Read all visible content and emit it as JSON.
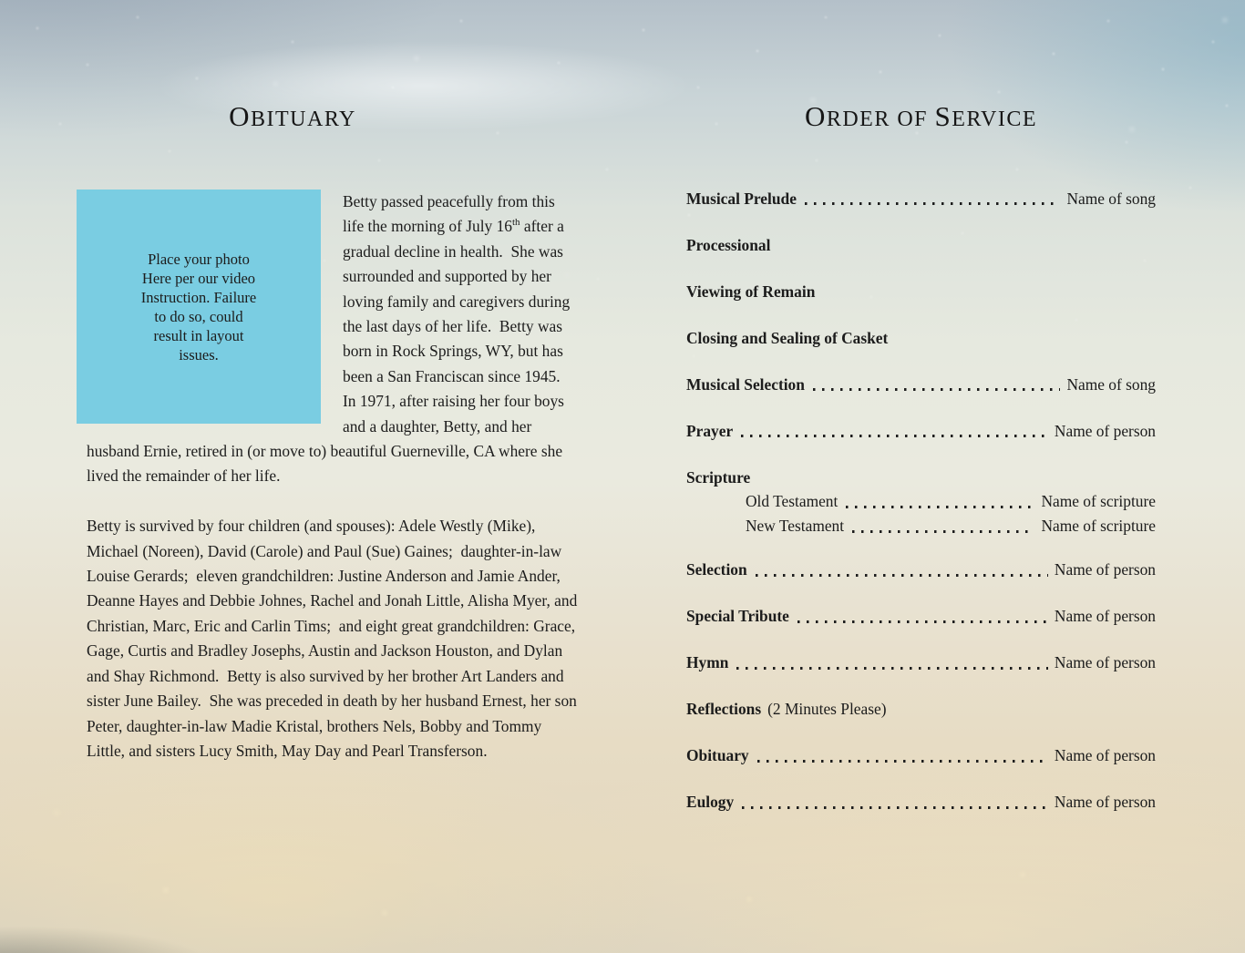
{
  "left_page": {
    "title_parts": [
      {
        "text": "O"
      },
      {
        "text": "bituary"
      }
    ],
    "photo_placeholder": {
      "bg_color": "#7acde2",
      "lines": [
        "Place your photo",
        "Here per our video",
        "Instruction. Failure",
        "to do so, could",
        "result in layout",
        "issues."
      ]
    },
    "paragraph1": {
      "before_sup": "Betty passed peacefully from this life the morning of July 16",
      "sup": "th",
      "after_sup": " after a gradual decline in health.  She was surrounded and supported by her loving family and caregivers during the last days of her life.  Betty was born in Rock Springs, WY, but has been a San Franciscan since 1945.  In 1971, after raising her four boys and a daughter, Betty, and her husband Ernie, retired in (or move to) beautiful Guerneville, CA where she lived the remainder of her life."
    },
    "paragraph2": "Betty is survived by four children (and spouses): Adele Westly (Mike), Michael (Noreen), David (Carole) and Paul (Sue) Gaines;  daughter-in-law Louise Gerards;  eleven grandchildren: Justine Anderson and Jamie Ander, Deanne Hayes and Debbie Johnes, Rachel and Jonah Little, Alisha Myer, and Christian, Marc, Eric and Carlin Tims;  and eight great grandchildren: Grace, Gage, Curtis and Bradley Josephs, Austin and Jackson Houston, and Dylan and Shay Richmond.  Betty is also survived by her brother Art Landers and sister June Bailey.  She was preceded in death by her husband Ernest, her son Peter, daughter-in-law Madie Kristal, brothers Nels, Bobby and Tommy Little, and sisters Lucy Smith, May Day and Pearl Transferson."
  },
  "right_page": {
    "title_parts": [
      {
        "text": "O"
      },
      {
        "text": "rder of "
      },
      {
        "text": "S"
      },
      {
        "text": "ervice"
      }
    ],
    "items": [
      {
        "label": "Musical Prelude",
        "value": "Name of song"
      },
      {
        "label": "Processional"
      },
      {
        "label": "Viewing of Remain"
      },
      {
        "label": "Closing and Sealing of Casket"
      },
      {
        "label": "Musical Selection",
        "value": "Name of song"
      },
      {
        "label": "Prayer",
        "value": "Name of person"
      },
      {
        "label": "Scripture",
        "sub": [
          {
            "label": "Old Testament",
            "value": "Name of scripture"
          },
          {
            "label": "New Testament",
            "value": "Name of scripture"
          }
        ]
      },
      {
        "label": "Selection",
        "value": "Name of person"
      },
      {
        "label": "Special Tribute",
        "value": "Name of person"
      },
      {
        "label": "Hymn",
        "value": "Name of person"
      },
      {
        "label": "Reflections",
        "suffix": "(2 Minutes Please)"
      },
      {
        "label": "Obituary",
        "value": "Name of person"
      },
      {
        "label": "Eulogy",
        "value": "Name of person"
      }
    ]
  },
  "colors": {
    "photo_placeholder_bg": "#7acde2",
    "text": "#1c1c1c"
  }
}
